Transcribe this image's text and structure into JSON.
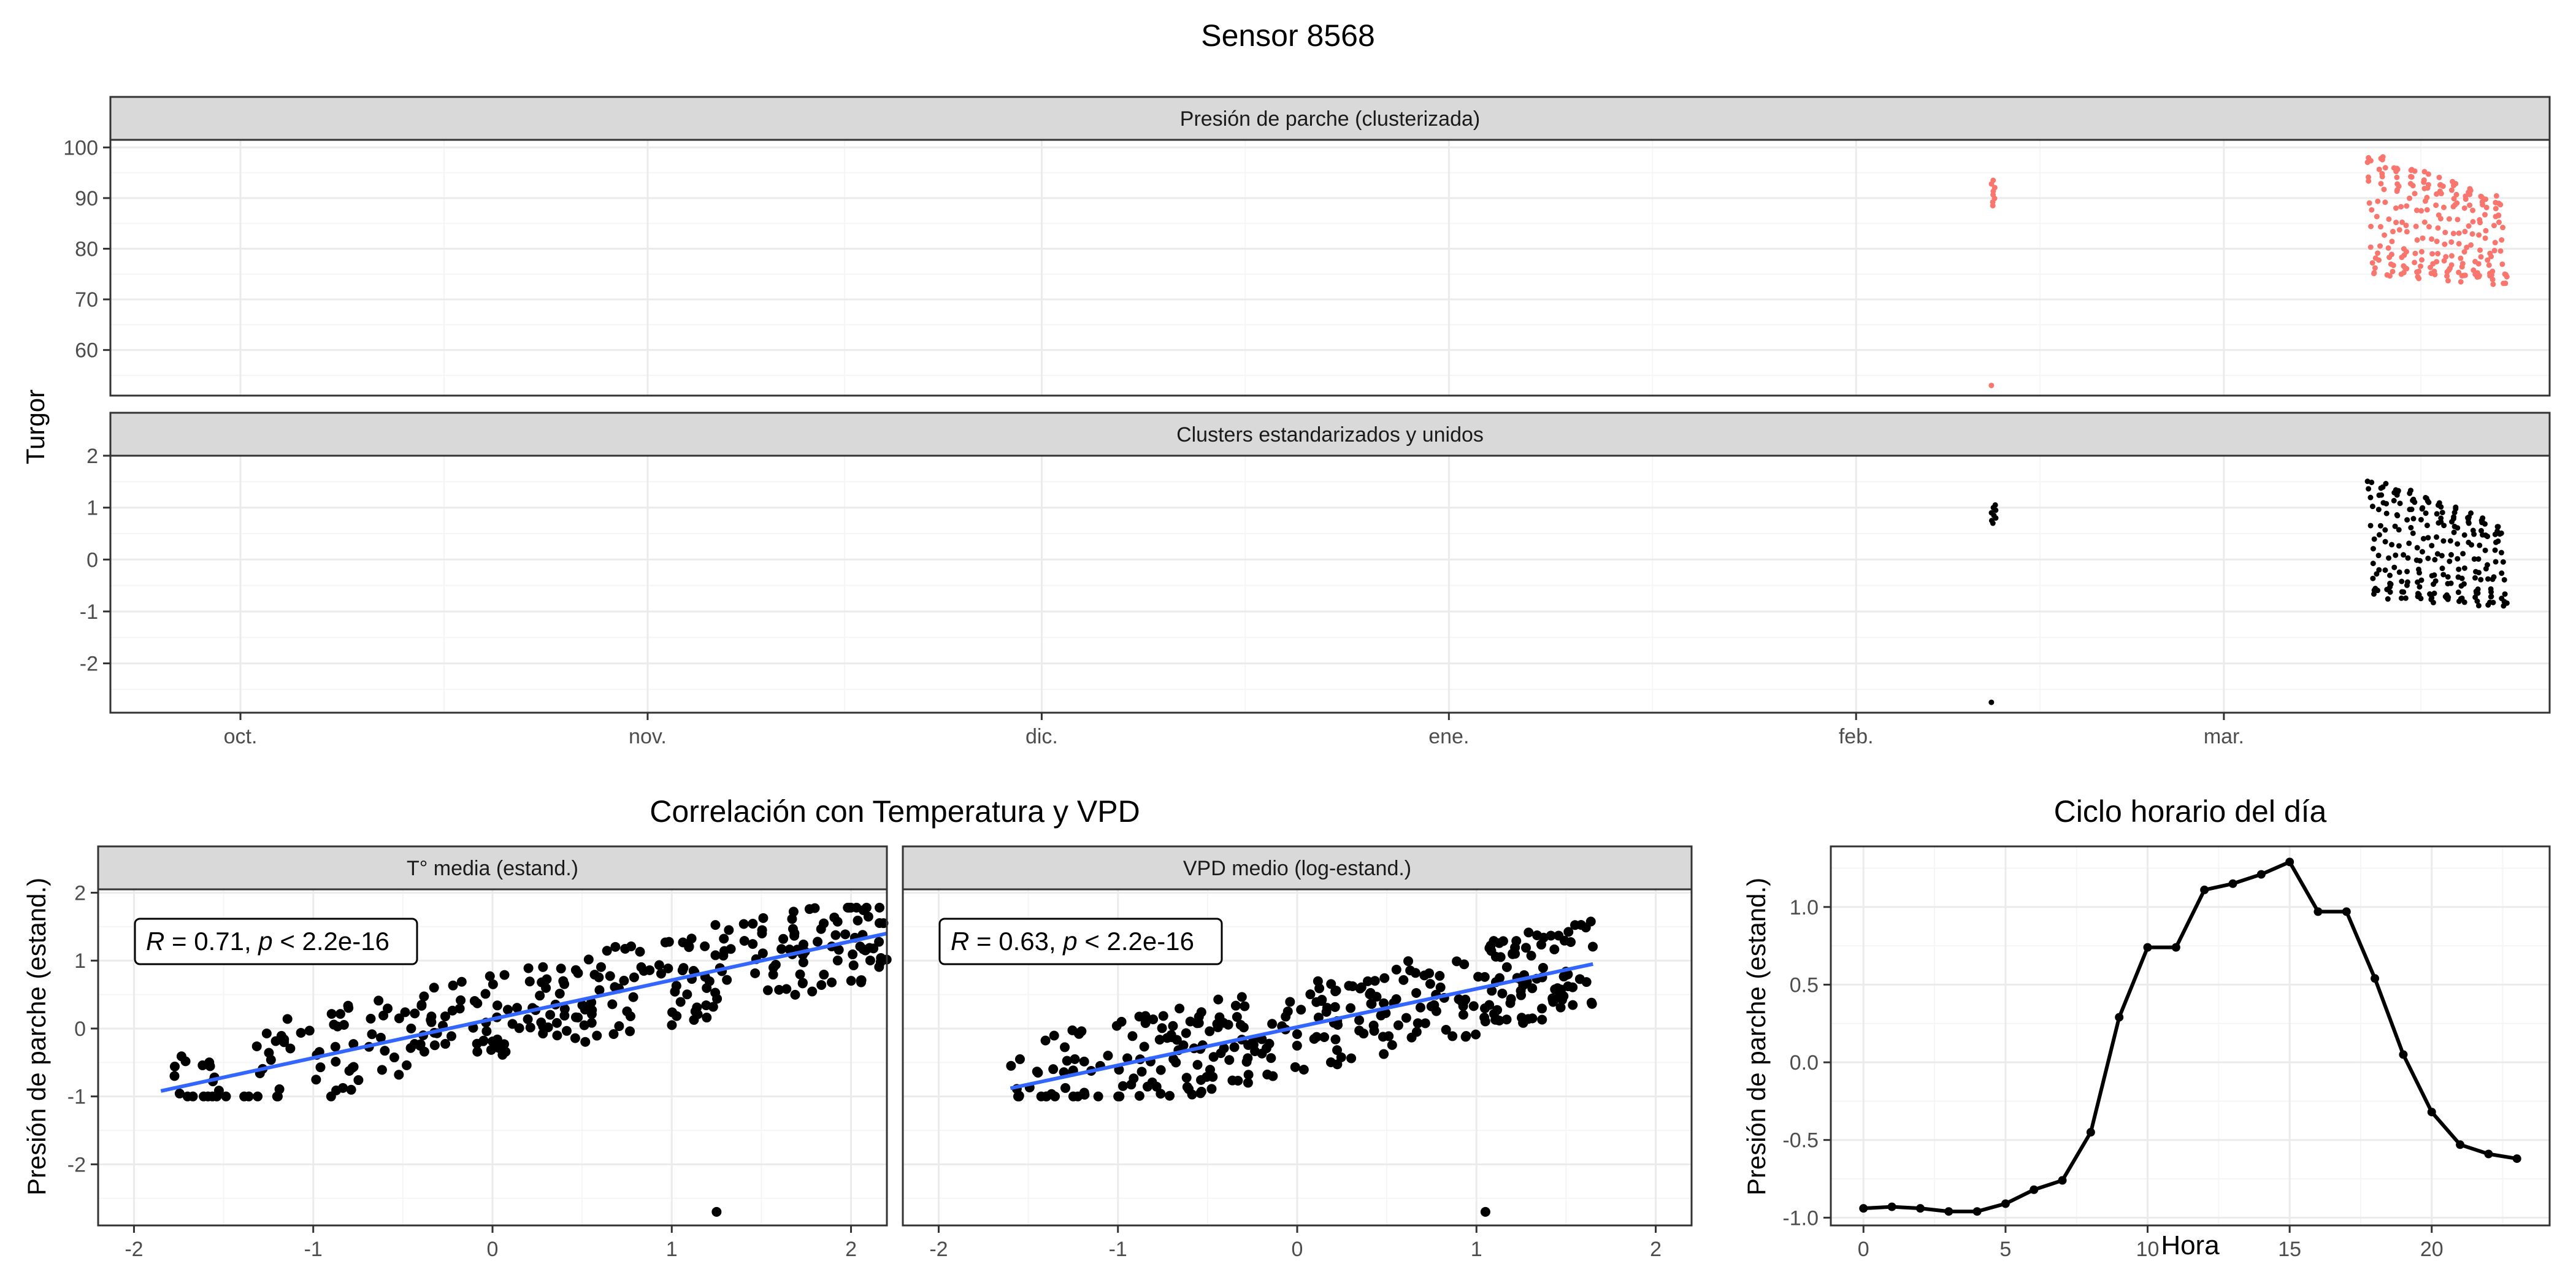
{
  "title": "Sensor 8568",
  "colors": {
    "cluster_points": "#F8766D",
    "std_points": "#000000",
    "fit_line": "#3366FF",
    "strip_bg": "#D9D9D9",
    "grid_major": "#EBEBEB",
    "grid_minor": "#F5F5F5"
  },
  "chart_data": [
    {
      "id": "time_top",
      "type": "scatter",
      "panel": "Presión de parche (clusterizada)",
      "ylabel": "Turgor",
      "shared_ylabel": true,
      "y_ticks": [
        60,
        70,
        80,
        90,
        100
      ],
      "ylim": [
        51,
        101.5
      ],
      "x_ticks": [
        "oct.",
        "nov.",
        "dic.",
        "ene.",
        "feb.",
        "mar."
      ],
      "x_unit": "días desde el inicio del eje",
      "xlim": [
        -9.9,
        175.8
      ],
      "grid": true,
      "point_groups": [
        {
          "x_range": [
            133.3,
            133.7
          ],
          "y_range": [
            88.5,
            93.5
          ],
          "count": 8
        },
        {
          "x": 133.3,
          "y": 53
        },
        {
          "x_range": [
            162,
            172.5
          ],
          "y_range": [
            72,
            100.5
          ],
          "count": 230
        }
      ]
    },
    {
      "id": "time_bottom",
      "type": "scatter",
      "panel": "Clusters estandarizados y unidos",
      "y_ticks": [
        -2,
        -1,
        0,
        1,
        2
      ],
      "ylim": [
        -2.95,
        2.0
      ],
      "x_ticks": [
        "oct.",
        "nov.",
        "dic.",
        "ene.",
        "feb.",
        "mar."
      ],
      "xlim": [
        -9.9,
        175.8
      ],
      "grid": true,
      "point_groups": [
        {
          "x_range": [
            133.3,
            133.7
          ],
          "y_range": [
            0.7,
            1.05
          ],
          "count": 8
        },
        {
          "x": 133.3,
          "y": -2.75
        },
        {
          "x_range": [
            162,
            172.5
          ],
          "y_range": [
            -1.0,
            1.75
          ],
          "count": 230
        }
      ]
    },
    {
      "id": "corr_temp",
      "type": "scatter",
      "group_title": "Correlación con Temperatura y VPD",
      "panel": "T° media (estand.)",
      "ylabel": "Presión de parche (estand.)",
      "x_ticks": [
        -2,
        -1,
        0,
        1,
        2
      ],
      "y_ticks": [
        -2,
        -1,
        0,
        1,
        2
      ],
      "xlim": [
        -2.2,
        2.2
      ],
      "ylim": [
        -2.9,
        2.05
      ],
      "annotation": {
        "R": "0.71",
        "p": "2.2e-16"
      },
      "fit_line": [
        [
          -1.85,
          -0.92
        ],
        [
          2.2,
          1.4
        ]
      ],
      "outlier": [
        1.25,
        -2.7
      ],
      "n_points": 320
    },
    {
      "id": "corr_vpd",
      "type": "scatter",
      "panel": "VPD medio (log-estand.)",
      "x_ticks": [
        -2,
        -1,
        0,
        1,
        2
      ],
      "xlim": [
        -2.2,
        2.2
      ],
      "ylim": [
        -2.9,
        2.05
      ],
      "annotation": {
        "R": "0.63",
        "p": "2.2e-16"
      },
      "fit_line": [
        [
          -1.6,
          -0.88
        ],
        [
          1.65,
          0.95
        ]
      ],
      "outlier": [
        1.05,
        -2.7
      ],
      "n_points": 320
    },
    {
      "id": "hourly",
      "type": "line",
      "title": "Ciclo horario del día",
      "xlabel": "Hora",
      "ylabel": "Presión de parche (estand.)",
      "x_ticks": [
        0,
        5,
        10,
        15,
        20
      ],
      "y_ticks": [
        -1.0,
        -0.5,
        0.0,
        0.5,
        1.0
      ],
      "y_tick_labels": [
        "-1.0",
        "-0.5",
        "0.0",
        "0.5",
        "1.0"
      ],
      "xlim": [
        -1.15,
        24.15
      ],
      "ylim": [
        -1.05,
        1.39
      ],
      "x": [
        0,
        1,
        2,
        3,
        4,
        5,
        6,
        7,
        8,
        9,
        10,
        11,
        12,
        13,
        14,
        15,
        16,
        17,
        18,
        19,
        20,
        21,
        22,
        23
      ],
      "y": [
        -0.94,
        -0.93,
        -0.94,
        -0.96,
        -0.96,
        -0.91,
        -0.82,
        -0.76,
        -0.45,
        0.29,
        0.74,
        0.74,
        1.11,
        1.15,
        1.21,
        1.29,
        0.97,
        0.97,
        0.54,
        0.05,
        -0.32,
        -0.53,
        -0.59,
        -0.62
      ]
    }
  ]
}
